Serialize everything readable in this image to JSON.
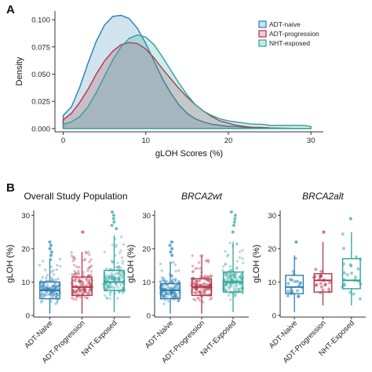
{
  "figure": {
    "panel_a_letter": "A",
    "panel_b_letter": "B"
  },
  "colors": {
    "ADT-naive": "#2a7fb3",
    "ADT-progression": "#b5334b",
    "NHT-exposed": "#2ba39a"
  },
  "chart_data": [
    {
      "type": "area",
      "panel": "A",
      "xlabel": "gLOH Scores (%)",
      "ylabel": "Density",
      "xlim": [
        -1,
        31.5
      ],
      "ylim": [
        -0.003,
        0.108
      ],
      "xticks": [
        0,
        10,
        20,
        30
      ],
      "yticks": [
        0.0,
        0.025,
        0.05,
        0.075,
        0.1
      ],
      "ytick_labels": [
        "0.000",
        "0.025",
        "0.050",
        "0.075",
        "0.100"
      ],
      "legend": {
        "placement": "top-right",
        "entries": [
          "ADT-naive",
          "ADT-progression",
          "NHT-exposed"
        ]
      },
      "series": [
        {
          "name": "ADT-naive",
          "x": [
            0,
            1,
            2,
            3,
            4,
            5,
            6,
            7,
            8,
            9,
            10,
            11,
            12,
            13,
            14,
            15,
            16,
            17,
            18,
            19,
            20,
            21,
            22,
            23,
            24,
            25,
            26,
            27,
            28,
            29,
            30
          ],
          "y": [
            0.012,
            0.02,
            0.038,
            0.06,
            0.08,
            0.095,
            0.103,
            0.104,
            0.101,
            0.092,
            0.078,
            0.062,
            0.046,
            0.033,
            0.022,
            0.014,
            0.009,
            0.006,
            0.004,
            0.003,
            0.002,
            0.002,
            0.001,
            0.001,
            0.001,
            0.0005,
            0.0003,
            0.0002,
            0.0001,
            0.0001,
            0.0001
          ]
        },
        {
          "name": "ADT-progression",
          "x": [
            0,
            1,
            2,
            3,
            4,
            5,
            6,
            7,
            8,
            9,
            10,
            11,
            12,
            13,
            14,
            15,
            16,
            17,
            18,
            19,
            20,
            21,
            22,
            23,
            24,
            25,
            26,
            27,
            28,
            29,
            30
          ],
          "y": [
            0.008,
            0.014,
            0.024,
            0.036,
            0.05,
            0.062,
            0.071,
            0.077,
            0.079,
            0.078,
            0.073,
            0.065,
            0.055,
            0.046,
            0.037,
            0.029,
            0.022,
            0.016,
            0.011,
            0.007,
            0.005,
            0.003,
            0.002,
            0.001,
            0.001,
            0.0005,
            0.0003,
            0.0002,
            0.0001,
            0.0001,
            0.0001
          ]
        },
        {
          "name": "NHT-exposed",
          "x": [
            0,
            1,
            2,
            3,
            4,
            5,
            6,
            7,
            8,
            9,
            10,
            11,
            12,
            13,
            14,
            15,
            16,
            17,
            18,
            19,
            20,
            21,
            22,
            23,
            24,
            25,
            26,
            27,
            28,
            29,
            30
          ],
          "y": [
            0.004,
            0.006,
            0.011,
            0.02,
            0.033,
            0.048,
            0.063,
            0.075,
            0.083,
            0.086,
            0.084,
            0.077,
            0.066,
            0.054,
            0.042,
            0.031,
            0.022,
            0.016,
            0.012,
            0.009,
            0.007,
            0.006,
            0.005,
            0.004,
            0.004,
            0.003,
            0.003,
            0.003,
            0.003,
            0.003,
            0.002
          ]
        }
      ]
    },
    {
      "type": "box",
      "panel": "B",
      "title": "Overall Study Population",
      "ylabel": "gLOH (%)",
      "ylim": [
        -0.5,
        31.5
      ],
      "yticks": [
        0,
        10,
        20,
        30
      ],
      "categories": [
        "ADT-Naive",
        "ADT-Progression",
        "NHT-Exposed"
      ],
      "boxes": [
        {
          "name": "ADT-Naive",
          "min": 0.5,
          "q1": 5,
          "median": 7.5,
          "q3": 10,
          "max": 17,
          "outliers": [
            18,
            19,
            20,
            21,
            22
          ]
        },
        {
          "name": "ADT-Progression",
          "min": 0.5,
          "q1": 6,
          "median": 8.5,
          "q3": 11.5,
          "max": 19,
          "outliers": [
            25
          ]
        },
        {
          "name": "NHT-Exposed",
          "min": 1,
          "q1": 7.5,
          "median": 10,
          "q3": 13.5,
          "max": 24,
          "outliers": [
            26,
            27,
            28,
            29,
            30,
            31
          ]
        }
      ]
    },
    {
      "type": "box",
      "panel": "B",
      "title": "BRCA2wt",
      "title_style": "italic",
      "ylabel": "gLOH (%)",
      "ylim": [
        -0.5,
        31.5
      ],
      "yticks": [
        0,
        10,
        20,
        30
      ],
      "categories": [
        "ADT-Naive",
        "ADT-Progression",
        "NHT-Exposed"
      ],
      "boxes": [
        {
          "name": "ADT-Naive",
          "min": 0.5,
          "q1": 5,
          "median": 7.5,
          "q3": 9.5,
          "max": 16,
          "outliers": [
            18,
            19,
            20,
            21,
            22
          ]
        },
        {
          "name": "ADT-Progression",
          "min": 0.5,
          "q1": 6,
          "median": 8.5,
          "q3": 11,
          "max": 18,
          "outliers": []
        },
        {
          "name": "NHT-Exposed",
          "min": 1,
          "q1": 7,
          "median": 10,
          "q3": 13,
          "max": 22,
          "outliers": [
            25,
            27,
            28,
            29,
            30,
            31
          ]
        }
      ]
    },
    {
      "type": "box",
      "panel": "B",
      "title": "BRCA2alt",
      "title_style": "italic",
      "ylabel": "gLOH (%)",
      "ylim": [
        -0.5,
        31.5
      ],
      "yticks": [
        0,
        10,
        20,
        30
      ],
      "categories": [
        "ADT-Naive",
        "ADT-Progression",
        "NHT-Exposed"
      ],
      "boxes": [
        {
          "name": "ADT-Naive",
          "min": 1,
          "q1": 6.5,
          "median": 8.5,
          "q3": 12,
          "max": 18,
          "outliers": [
            22
          ]
        },
        {
          "name": "ADT-Progression",
          "min": 3,
          "q1": 7,
          "median": 10.5,
          "q3": 12.5,
          "max": 22,
          "outliers": [
            25
          ]
        },
        {
          "name": "NHT-Exposed",
          "min": 3,
          "q1": 8,
          "median": 10.5,
          "q3": 17,
          "max": 25,
          "outliers": [
            29
          ]
        }
      ]
    }
  ]
}
